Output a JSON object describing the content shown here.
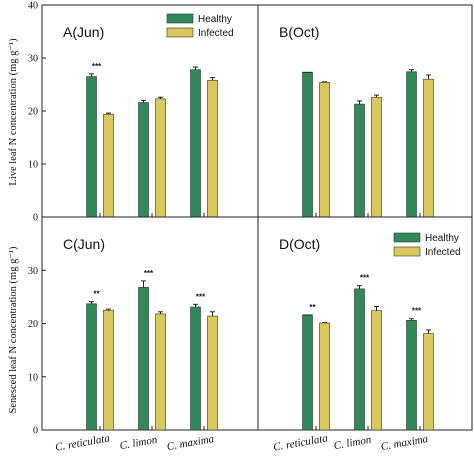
{
  "colors": {
    "healthy": "#2e8b57",
    "infected": "#d9c95a"
  },
  "ylabels": {
    "top": "Live leaf N concentration (mg g⁻¹)",
    "bottom": "Senesced leaf N concentration (mg g⁻¹)"
  },
  "categories": [
    "C. reticulata",
    "C. limon",
    "C. maxima"
  ],
  "legend": [
    "Healthy",
    "Infected"
  ],
  "chart_data": [
    {
      "type": "bar",
      "title": "A(Jun)",
      "categories": [
        "C. reticulata",
        "C. limon",
        "C. maxima"
      ],
      "ylim": [
        0,
        40
      ],
      "yticks": [
        0,
        10,
        20,
        30,
        40
      ],
      "ylabel": "Live leaf N concentration (mg g⁻¹)",
      "legend_position": "top-right",
      "series": [
        {
          "name": "Healthy",
          "values": [
            26.5,
            21.6,
            27.8
          ],
          "errors": [
            0.5,
            0.4,
            0.5
          ]
        },
        {
          "name": "Infected",
          "values": [
            19.4,
            22.3,
            25.8
          ],
          "errors": [
            0.2,
            0.3,
            0.5
          ]
        }
      ],
      "annotations": [
        {
          "category": 0,
          "text": "***"
        }
      ]
    },
    {
      "type": "bar",
      "title": "B(Oct)",
      "categories": [
        "C. reticulata",
        "C. limon",
        "C. maxima"
      ],
      "ylim": [
        0,
        40
      ],
      "yticks": [
        0,
        10,
        20,
        30,
        40
      ],
      "series": [
        {
          "name": "Healthy",
          "values": [
            27.3,
            21.3,
            27.4
          ],
          "errors": [
            0.0,
            0.6,
            0.4
          ]
        },
        {
          "name": "Infected",
          "values": [
            25.4,
            22.6,
            26.0
          ],
          "errors": [
            0.1,
            0.4,
            0.8
          ]
        }
      ],
      "annotations": []
    },
    {
      "type": "bar",
      "title": "C(Jun)",
      "categories": [
        "C. reticulata",
        "C. limon",
        "C. maxima"
      ],
      "ylim": [
        0,
        40
      ],
      "yticks": [
        0,
        10,
        20,
        30
      ],
      "ylabel": "Senesced leaf N concentration (mg g⁻¹)",
      "series": [
        {
          "name": "Healthy",
          "values": [
            23.7,
            26.8,
            23.1
          ],
          "errors": [
            0.4,
            1.2,
            0.5
          ]
        },
        {
          "name": "Infected",
          "values": [
            22.5,
            21.8,
            21.4
          ],
          "errors": [
            0.2,
            0.4,
            0.8
          ]
        }
      ],
      "annotations": [
        {
          "category": 0,
          "text": "**"
        },
        {
          "category": 1,
          "text": "***"
        },
        {
          "category": 2,
          "text": "***"
        }
      ]
    },
    {
      "type": "bar",
      "title": "D(Oct)",
      "categories": [
        "C. reticulata",
        "C. limon",
        "C. maxima"
      ],
      "ylim": [
        0,
        40
      ],
      "yticks": [
        0,
        10,
        20,
        30
      ],
      "legend_position": "top-right",
      "series": [
        {
          "name": "Healthy",
          "values": [
            21.6,
            26.5,
            20.6
          ],
          "errors": [
            0.0,
            0.6,
            0.3
          ]
        },
        {
          "name": "Infected",
          "values": [
            20.1,
            22.4,
            18.1
          ],
          "errors": [
            0.1,
            0.8,
            0.7
          ]
        }
      ],
      "annotations": [
        {
          "category": 0,
          "text": "**"
        },
        {
          "category": 1,
          "text": "***"
        },
        {
          "category": 2,
          "text": "***"
        }
      ]
    }
  ]
}
